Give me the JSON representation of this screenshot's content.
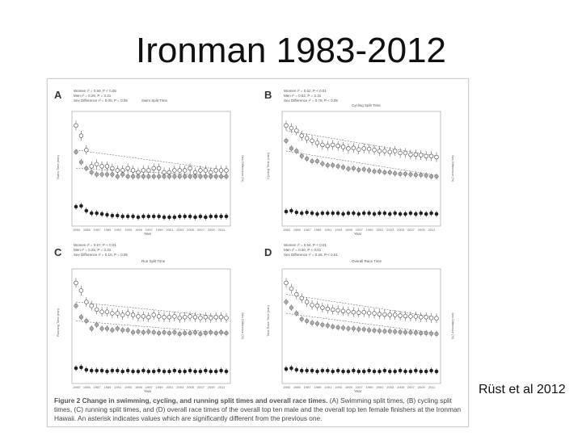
{
  "slide": {
    "title": "Ironman 1983-2012",
    "citation": "Rüst et al 2012"
  },
  "panels": [
    {
      "label": "A",
      "title": "Swim Split Time",
      "legend": [
        "Women r² = 0.50, P < 0.05",
        "Men r² = 0.26, P = 3.31",
        "Sex Difference r² = 0.05, P = 0.05"
      ],
      "xlabel": "Year",
      "ylabel": "Swim Time (min)",
      "y2label": "Sex Difference (%)"
    },
    {
      "label": "B",
      "title": "Cycling Split Time",
      "legend": [
        "Women r² = 0.62, P < 0.01",
        "Men r² = 0.52, P = 3.31",
        "Sex Difference r² = 0.78, P < 0.05"
      ],
      "xlabel": "Year",
      "ylabel": "Cycling Time (min)",
      "y2label": "Sex Difference (%)"
    },
    {
      "label": "C",
      "title": "Run Split Time",
      "legend": [
        "Women r² = 0.57, P < 0.01",
        "Men r² = 0.26, P = 3.31",
        "Sex Difference r² = 0.15, P = 0.05"
      ],
      "xlabel": "Year",
      "ylabel": "Running Time (min)",
      "y2label": "Sex Difference (%)"
    },
    {
      "label": "D",
      "title": "Overall Race Time",
      "legend": [
        "Women r² = 0.54, P < 0.01",
        "Men r² = 0.40, P < 0.01",
        "Sex Difference r² = 0.26, P < 0.01"
      ],
      "xlabel": "Year",
      "ylabel": "Total Race Time (min)",
      "y2label": "Sex Difference (%)"
    }
  ],
  "caption": {
    "heading": "Figure 2 Change in swimming, cycling, and running split times and overall race times.",
    "body": "(A) Swimming split times, (B) cycling split times, (C) running split times, and (D) overall race times of the overall top ten male and the overall top ten female finishers at the Ironman Hawaii. An asterisk indicates values which are significantly different from the previous one."
  },
  "chart_data": [
    {
      "type": "scatter",
      "panel": "A",
      "x": [
        1983,
        1984,
        1985,
        1986,
        1987,
        1988,
        1989,
        1990,
        1991,
        1992,
        1993,
        1994,
        1995,
        1996,
        1997,
        1998,
        1999,
        2000,
        2001,
        2002,
        2003,
        2004,
        2005,
        2006,
        2007,
        2008,
        2009,
        2010,
        2011,
        2012
      ],
      "series": [
        {
          "name": "Women",
          "values": [
            80,
            75,
            68,
            60,
            61,
            60,
            60,
            59,
            58,
            58,
            59,
            58,
            57,
            58,
            58,
            59,
            59,
            57,
            57,
            58,
            58,
            58,
            59,
            57,
            58,
            58,
            57,
            58,
            58,
            58
          ]
        },
        {
          "name": "Men",
          "values": [
            67,
            62,
            59,
            57,
            56,
            56,
            56,
            56,
            55,
            56,
            55,
            55,
            55,
            55,
            55,
            55,
            55,
            55,
            55,
            55,
            55,
            55,
            55,
            55,
            55,
            55,
            55,
            55,
            55,
            55
          ]
        },
        {
          "name": "Sex Difference",
          "values": [
            20,
            21,
            15,
            12,
            12,
            11,
            10,
            9,
            9,
            8,
            8,
            8,
            7,
            8,
            8,
            8,
            8,
            7,
            7,
            7,
            8,
            8,
            8,
            7,
            8,
            7,
            8,
            8,
            8,
            8
          ]
        }
      ]
    },
    {
      "type": "scatter",
      "panel": "B",
      "x": [
        1983,
        1984,
        1985,
        1986,
        1987,
        1988,
        1989,
        1990,
        1991,
        1992,
        1993,
        1994,
        1995,
        1996,
        1997,
        1998,
        1999,
        2000,
        2001,
        2002,
        2003,
        2004,
        2005,
        2006,
        2007,
        2008,
        2009,
        2010,
        2011,
        2012
      ],
      "series": [
        {
          "name": "Women",
          "values": [
            390,
            385,
            380,
            370,
            365,
            360,
            356,
            352,
            350,
            352,
            350,
            348,
            345,
            346,
            343,
            345,
            344,
            342,
            340,
            340,
            338,
            340,
            336,
            336,
            333,
            333,
            332,
            330,
            330,
            328
          ]
        },
        {
          "name": "Men",
          "values": [
            360,
            345,
            340,
            330,
            325,
            320,
            320,
            315,
            312,
            312,
            310,
            308,
            305,
            306,
            303,
            304,
            302,
            300,
            300,
            298,
            298,
            296,
            295,
            295,
            294,
            293,
            293,
            292,
            290,
            290
          ]
        },
        {
          "name": "Sex Difference",
          "values": [
            14,
            15,
            13,
            12,
            13,
            12,
            11,
            12,
            12,
            12,
            12,
            11,
            12,
            12,
            11,
            12,
            12,
            11,
            12,
            12,
            11,
            12,
            11,
            11,
            12,
            11,
            12,
            11,
            12,
            11
          ]
        }
      ]
    },
    {
      "type": "scatter",
      "panel": "C",
      "x": [
        1983,
        1984,
        1985,
        1986,
        1987,
        1988,
        1989,
        1990,
        1991,
        1992,
        1993,
        1994,
        1995,
        1996,
        1997,
        1998,
        1999,
        2000,
        2001,
        2002,
        2003,
        2004,
        2005,
        2006,
        2007,
        2008,
        2009,
        2010,
        2011,
        2012
      ],
      "series": [
        {
          "name": "Women",
          "values": [
            250,
            240,
            225,
            220,
            215,
            212,
            212,
            210,
            210,
            208,
            210,
            208,
            206,
            206,
            205,
            208,
            206,
            205,
            205,
            206,
            204,
            205,
            206,
            205,
            204,
            205,
            204,
            205,
            205,
            204
          ]
        },
        {
          "name": "Men",
          "values": [
            220,
            205,
            200,
            190,
            195,
            190,
            190,
            188,
            190,
            188,
            188,
            185,
            186,
            185,
            186,
            185,
            184,
            185,
            184,
            185,
            183,
            184,
            184,
            185,
            183,
            184,
            185,
            184,
            185,
            184
          ]
        },
        {
          "name": "Sex Difference",
          "values": [
            15,
            16,
            13,
            12,
            12,
            12,
            11,
            12,
            12,
            11,
            12,
            11,
            11,
            12,
            11,
            11,
            12,
            11,
            11,
            12,
            11,
            11,
            12,
            11,
            11,
            12,
            11,
            11,
            12,
            11
          ]
        }
      ]
    },
    {
      "type": "scatter",
      "panel": "D",
      "x": [
        1983,
        1984,
        1985,
        1986,
        1987,
        1988,
        1989,
        1990,
        1991,
        1992,
        1993,
        1994,
        1995,
        1996,
        1997,
        1998,
        1999,
        2000,
        2001,
        2002,
        2003,
        2004,
        2005,
        2006,
        2007,
        2008,
        2009,
        2010,
        2011,
        2012
      ],
      "series": [
        {
          "name": "Women",
          "values": [
            690,
            675,
            660,
            650,
            640,
            632,
            630,
            625,
            622,
            620,
            618,
            616,
            615,
            613,
            612,
            613,
            611,
            610,
            608,
            607,
            606,
            606,
            604,
            603,
            602,
            602,
            600,
            600,
            598,
            597
          ]
        },
        {
          "name": "Men",
          "values": [
            640,
            625,
            610,
            595,
            590,
            585,
            583,
            580,
            578,
            575,
            573,
            572,
            570,
            570,
            568,
            568,
            566,
            565,
            564,
            563,
            563,
            562,
            561,
            560,
            560,
            559,
            558,
            558,
            557,
            556
          ]
        },
        {
          "name": "Sex Difference",
          "values": [
            14,
            15,
            13,
            12,
            12,
            12,
            11,
            12,
            12,
            11,
            12,
            11,
            11,
            12,
            11,
            11,
            12,
            11,
            11,
            12,
            11,
            11,
            12,
            11,
            11,
            12,
            11,
            11,
            12,
            11
          ]
        }
      ]
    }
  ]
}
